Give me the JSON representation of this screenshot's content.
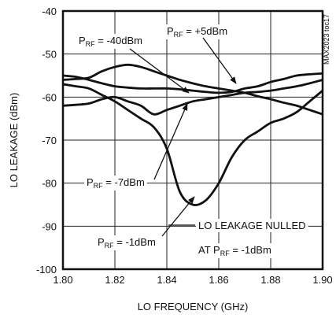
{
  "chart_data": {
    "type": "line",
    "x_label": "LO FREQUENCY (GHz)",
    "y_label": "LO LEAKAGE (dBm)",
    "side_note": "MAX2023 toc17",
    "xlim": [
      1.8,
      1.9
    ],
    "ylim": [
      -100,
      -40
    ],
    "xticks": [
      {
        "value": 1.8,
        "label": "1.80"
      },
      {
        "value": 1.82,
        "label": "1.82"
      },
      {
        "value": 1.84,
        "label": "1.84"
      },
      {
        "value": 1.86,
        "label": "1.86"
      },
      {
        "value": 1.88,
        "label": "1.88"
      },
      {
        "value": 1.9,
        "label": "1.90"
      }
    ],
    "yticks": [
      -100,
      -90,
      -80,
      -70,
      -60,
      -50,
      -40
    ],
    "grid": true,
    "x": [
      1.8,
      1.805,
      1.81,
      1.815,
      1.82,
      1.825,
      1.83,
      1.835,
      1.84,
      1.845,
      1.85,
      1.855,
      1.86,
      1.865,
      1.87,
      1.875,
      1.88,
      1.885,
      1.89,
      1.895,
      1.9
    ],
    "series": [
      {
        "name": [
          "P",
          "RF",
          " = +5dBm"
        ],
        "color": "#111111",
        "values": [
          -55,
          -55.3,
          -56,
          -56.8,
          -57.5,
          -57.8,
          -58,
          -58,
          -58,
          -58.2,
          -58.5,
          -58.8,
          -59,
          -58.8,
          -58,
          -57.5,
          -56.5,
          -55.8,
          -55,
          -54.7,
          -54.5
        ]
      },
      {
        "name": [
          "P",
          "RF",
          " = -40dBm"
        ],
        "color": "#111111",
        "values": [
          -56,
          -55.8,
          -55.5,
          -54,
          -53,
          -52.5,
          -53,
          -54,
          -55,
          -56,
          -56.8,
          -57.5,
          -58,
          -58.5,
          -59,
          -59.8,
          -60.5,
          -61.3,
          -62,
          -63,
          -64
        ]
      },
      {
        "name": [
          "P",
          "RF",
          " = -7dBm"
        ],
        "color": "#111111",
        "values": [
          -62,
          -61.8,
          -61.5,
          -60.5,
          -60,
          -61,
          -62,
          -64,
          -63,
          -62,
          -61,
          -60.5,
          -60,
          -59.5,
          -59,
          -58.8,
          -58.5,
          -58,
          -57.5,
          -56.8,
          -56
        ]
      },
      {
        "name": [
          "P",
          "RF",
          " = -1dBm"
        ],
        "color": "#111111",
        "values": [
          -57,
          -57.5,
          -58,
          -59.5,
          -61,
          -63,
          -65,
          -67,
          -72,
          -82,
          -85,
          -84,
          -80,
          -74,
          -70,
          -68,
          -66,
          -65,
          -63.5,
          -61,
          -58.5
        ]
      }
    ],
    "annotations": [
      {
        "text": "LO LEAKAGE NULLED"
      },
      {
        "text": [
          "AT P",
          "RF",
          " = -1dBm"
        ]
      }
    ]
  }
}
